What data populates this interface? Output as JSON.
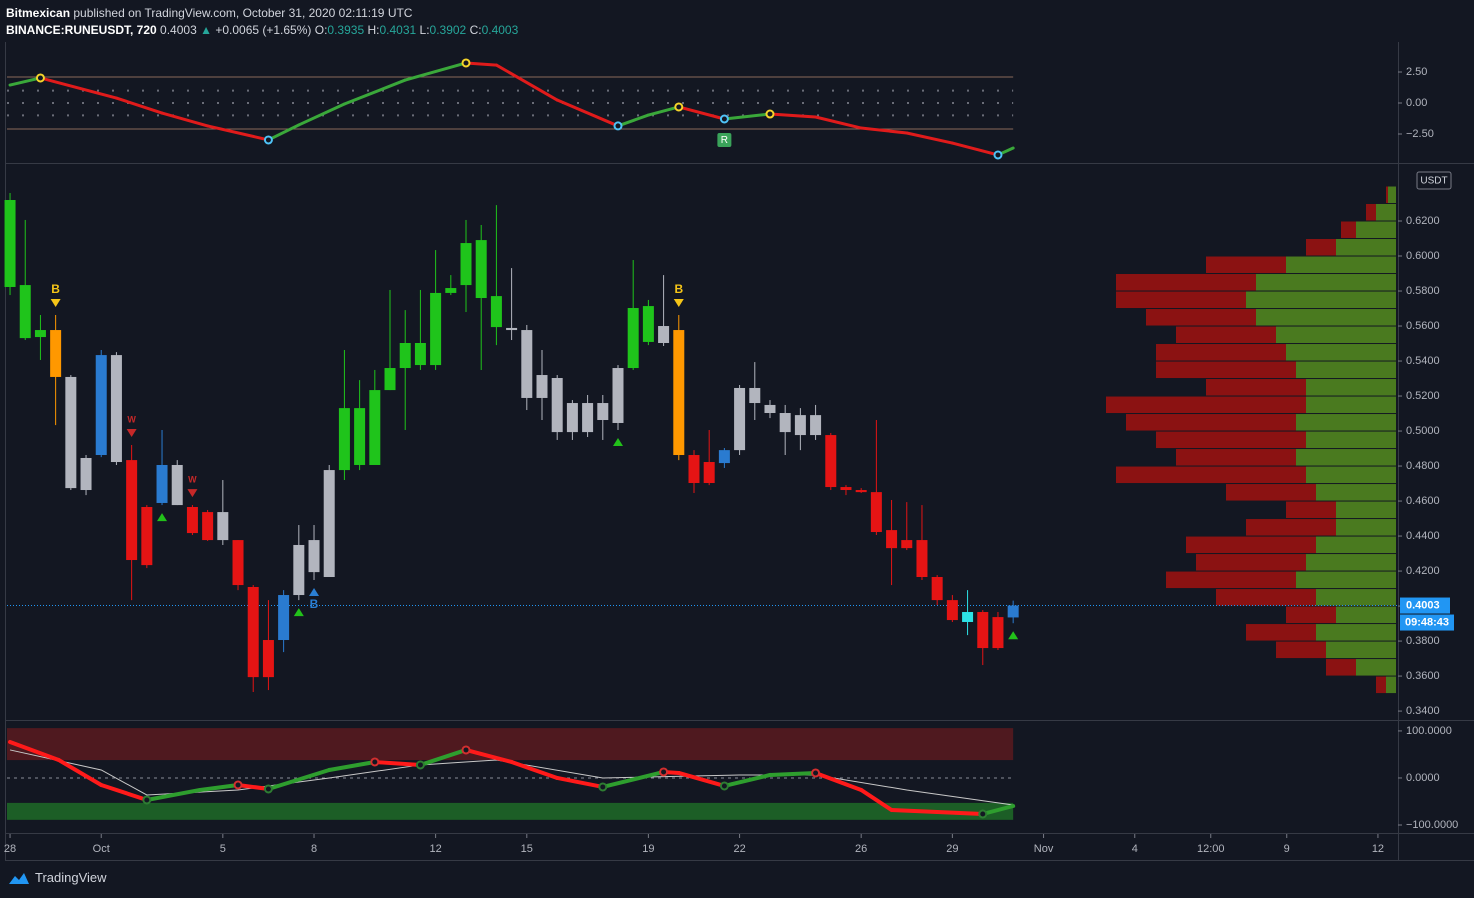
{
  "header": {
    "author": "Bitmexican",
    "published": "published on TradingView.com, October 31, 2020 02:11:19 UTC",
    "symbol": "BINANCE:RUNEUSDT, 720",
    "last": "0.4003",
    "arrow": "▲",
    "change": "+0.0065 (+1.65%)",
    "ohlc": [
      {
        "label": "O:",
        "value": "0.3935"
      },
      {
        "label": "H:",
        "value": "0.4031"
      },
      {
        "label": "L:",
        "value": "0.3902"
      },
      {
        "label": "C:",
        "value": "0.4003"
      }
    ]
  },
  "footer": {
    "brand": "TradingView"
  },
  "chart_data": [
    {
      "type": "line",
      "xlim": [
        -0.1,
        45.66
      ],
      "ylim": [
        -4.84,
        4.76
      ],
      "yticks": [
        {
          "value": 2.5,
          "label": "2.50"
        },
        {
          "value": 0,
          "label": "0.00"
        },
        {
          "value": -2.5,
          "label": "−2.50"
        }
      ],
      "x": [
        0,
        1,
        3.5,
        5,
        6.5,
        8.5,
        9.5,
        11,
        13,
        15,
        16,
        18,
        20,
        21,
        22,
        23.5,
        25,
        26.5,
        28,
        29.5,
        31,
        32.5,
        33
      ],
      "values": [
        1.45,
        2.02,
        0.4,
        -0.81,
        -1.85,
        -2.98,
        -1.77,
        -0.08,
        1.85,
        3.23,
        3.06,
        0.24,
        -1.85,
        -0.97,
        -0.32,
        -1.29,
        -0.89,
        -1.13,
        -2.02,
        -2.42,
        -3.23,
        -4.19,
        -3.63
      ],
      "rising_color": "#3aa83a",
      "falling_color": "#e01b1b",
      "peak_color": "#f5d42a",
      "trough_color": "#4fc3f7",
      "levels": [
        2.1,
        -2.1
      ],
      "level_color": "#8a6a5a",
      "dotted_levels": [
        1,
        0,
        -1
      ],
      "annotations": [
        {
          "x": 23.5,
          "text": "R"
        }
      ]
    },
    {
      "type": "candlestick",
      "xlim": [
        -0.1,
        45.66
      ],
      "ylim": [
        0.3349,
        0.652
      ],
      "xticks": [
        {
          "value": 0,
          "label": "28"
        },
        {
          "value": 3,
          "label": "Oct"
        },
        {
          "value": 7,
          "label": "5"
        },
        {
          "value": 10,
          "label": "8"
        },
        {
          "value": 14,
          "label": "12"
        },
        {
          "value": 17,
          "label": "15"
        },
        {
          "value": 21,
          "label": "19"
        },
        {
          "value": 24,
          "label": "22"
        },
        {
          "value": 28,
          "label": "26"
        },
        {
          "value": 31,
          "label": "29"
        },
        {
          "value": 34,
          "label": "Nov"
        },
        {
          "value": 37,
          "label": "4"
        },
        {
          "value": 39.5,
          "label": "12:00"
        },
        {
          "value": 42,
          "label": "9"
        },
        {
          "value": 45,
          "label": "12"
        }
      ],
      "yticks": [
        {
          "value": 0.34,
          "label": "0.3400"
        },
        {
          "value": 0.36,
          "label": "0.3600"
        },
        {
          "value": 0.38,
          "label": "0.3800"
        },
        {
          "value": 0.4,
          "label": "0.4000"
        },
        {
          "value": 0.42,
          "label": "0.4200"
        },
        {
          "value": 0.44,
          "label": "0.4400"
        },
        {
          "value": 0.46,
          "label": "0.4600"
        },
        {
          "value": 0.48,
          "label": "0.4800"
        },
        {
          "value": 0.5,
          "label": "0.5000"
        },
        {
          "value": 0.52,
          "label": "0.5200"
        },
        {
          "value": 0.54,
          "label": "0.5400"
        },
        {
          "value": 0.56,
          "label": "0.5600"
        },
        {
          "value": 0.58,
          "label": "0.5800"
        },
        {
          "value": 0.6,
          "label": "0.6000"
        },
        {
          "value": 0.62,
          "label": "0.6200"
        }
      ],
      "currency": "USDT",
      "x": [
        0,
        0.5,
        1,
        1.5,
        2,
        2.5,
        3,
        3.5,
        4,
        4.5,
        5,
        5.5,
        6,
        6.5,
        7,
        7.5,
        8,
        8.5,
        9,
        9.5,
        10,
        10.5,
        11,
        11.5,
        12,
        12.5,
        13,
        13.5,
        14,
        14.5,
        15,
        15.5,
        16,
        16.5,
        17,
        17.5,
        18,
        18.5,
        19,
        19.5,
        20,
        20.5,
        21,
        21.5,
        22,
        22.5,
        23,
        23.5,
        24,
        24.5,
        25,
        25.5,
        26,
        26.5,
        27,
        27.5,
        28,
        28.5,
        29,
        29.5,
        30,
        30.5,
        31,
        31.5,
        32,
        32.5,
        33
      ],
      "open": [
        0.5823,
        0.5531,
        0.5537,
        0.5577,
        0.5309,
        0.4663,
        0.4863,
        0.5434,
        0.4834,
        0.4566,
        0.4589,
        0.4806,
        0.4566,
        0.4537,
        0.4377,
        0.4377,
        0.4109,
        0.3806,
        0.3806,
        0.4063,
        0.4194,
        0.4166,
        0.4777,
        0.4806,
        0.4806,
        0.5234,
        0.536,
        0.5377,
        0.5377,
        0.5789,
        0.5834,
        0.576,
        0.5594,
        0.5589,
        0.5577,
        0.5189,
        0.5303,
        0.516,
        0.516,
        0.5063,
        0.5046,
        0.536,
        0.5509,
        0.5503,
        0.5577,
        0.4863,
        0.4823,
        0.4817,
        0.4891,
        0.516,
        0.5103,
        0.5103,
        0.5091,
        0.5091,
        0.4977,
        0.468,
        0.4663,
        0.4651,
        0.4434,
        0.4377,
        0.4377,
        0.4166,
        0.4034,
        0.3966,
        0.3966,
        0.3937,
        0.3935
      ],
      "high": [
        0.636,
        0.6206,
        0.5663,
        0.5663,
        0.532,
        0.4863,
        0.5463,
        0.5451,
        0.492,
        0.4577,
        0.5006,
        0.4834,
        0.4577,
        0.4549,
        0.472,
        0.4377,
        0.412,
        0.4034,
        0.4091,
        0.4463,
        0.4463,
        0.4806,
        0.5463,
        0.5291,
        0.5349,
        0.5806,
        0.5691,
        0.5806,
        0.6034,
        0.5891,
        0.6206,
        0.6177,
        0.6291,
        0.5931,
        0.5606,
        0.5463,
        0.532,
        0.5177,
        0.5206,
        0.5206,
        0.5377,
        0.5977,
        0.5749,
        0.5891,
        0.5663,
        0.4891,
        0.5006,
        0.4903,
        0.5263,
        0.5394,
        0.5177,
        0.5149,
        0.5131,
        0.5149,
        0.4989,
        0.4691,
        0.4674,
        0.5063,
        0.4606,
        0.4594,
        0.4577,
        0.4177,
        0.4063,
        0.4091,
        0.3977,
        0.3966,
        0.4031
      ],
      "low": [
        0.5777,
        0.552,
        0.5406,
        0.5034,
        0.4663,
        0.4634,
        0.4851,
        0.4806,
        0.4034,
        0.4217,
        0.4577,
        0.4577,
        0.4406,
        0.4372,
        0.4349,
        0.4091,
        0.3509,
        0.352,
        0.3737,
        0.4034,
        0.4149,
        0.4166,
        0.472,
        0.4777,
        0.4823,
        0.5234,
        0.5006,
        0.5349,
        0.5349,
        0.5777,
        0.568,
        0.5349,
        0.5491,
        0.552,
        0.512,
        0.5063,
        0.4949,
        0.4949,
        0.4966,
        0.4949,
        0.5006,
        0.5349,
        0.5491,
        0.5486,
        0.4834,
        0.4646,
        0.4691,
        0.4789,
        0.4863,
        0.5063,
        0.5074,
        0.4863,
        0.4891,
        0.4949,
        0.4663,
        0.4634,
        0.4646,
        0.4406,
        0.412,
        0.432,
        0.4149,
        0.4006,
        0.3909,
        0.3834,
        0.3663,
        0.3749,
        0.3902
      ],
      "close": [
        0.632,
        0.5834,
        0.5577,
        0.5309,
        0.4674,
        0.4846,
        0.5434,
        0.4823,
        0.4263,
        0.4234,
        0.4806,
        0.4577,
        0.4417,
        0.4377,
        0.4537,
        0.412,
        0.3594,
        0.3594,
        0.4063,
        0.4349,
        0.4377,
        0.4777,
        0.5131,
        0.5131,
        0.5234,
        0.536,
        0.5503,
        0.5503,
        0.5789,
        0.5817,
        0.6074,
        0.6091,
        0.5771,
        0.5577,
        0.5189,
        0.532,
        0.4994,
        0.4994,
        0.4994,
        0.516,
        0.536,
        0.5703,
        0.5714,
        0.56,
        0.4863,
        0.4703,
        0.4703,
        0.4891,
        0.5246,
        0.5246,
        0.5149,
        0.4994,
        0.4977,
        0.4977,
        0.468,
        0.4663,
        0.4651,
        0.4423,
        0.4331,
        0.4331,
        0.4166,
        0.4034,
        0.392,
        0.3909,
        0.376,
        0.376,
        0.4003
      ],
      "colors": [
        "#1fc41b",
        "#1fc41b",
        "#1fc41b",
        "#ff9800",
        "#b2b5be",
        "#b2b5be",
        "#2a7bd0",
        "#b2b5be",
        "#e51414",
        "#e51414",
        "#2a7bd0",
        "#b2b5be",
        "#e51414",
        "#e51414",
        "#b2b5be",
        "#e51414",
        "#e51414",
        "#e51414",
        "#2a7bd0",
        "#b2b5be",
        "#b2b5be",
        "#b2b5be",
        "#1fc41b",
        "#1fc41b",
        "#1fc41b",
        "#1fc41b",
        "#1fc41b",
        "#1fc41b",
        "#1fc41b",
        "#1fc41b",
        "#1fc41b",
        "#1fc41b",
        "#1fc41b",
        "#b2b5be",
        "#b2b5be",
        "#b2b5be",
        "#b2b5be",
        "#b2b5be",
        "#b2b5be",
        "#b2b5be",
        "#b2b5be",
        "#1fc41b",
        "#1fc41b",
        "#b2b5be",
        "#ff9800",
        "#e51414",
        "#e51414",
        "#2a7bd0",
        "#b2b5be",
        "#b2b5be",
        "#b2b5be",
        "#b2b5be",
        "#b2b5be",
        "#b2b5be",
        "#e51414",
        "#e51414",
        "#e51414",
        "#e51414",
        "#e51414",
        "#e51414",
        "#e51414",
        "#e51414",
        "#e51414",
        "#2de2e6",
        "#e51414",
        "#e51414",
        "#2a7bd0"
      ],
      "signals": [
        {
          "x": 1.5,
          "text": "B",
          "position": "above",
          "color": "#f5c518"
        },
        {
          "x": 4,
          "text": "W",
          "position": "above",
          "color": "#c62828"
        },
        {
          "x": 6,
          "text": "W",
          "position": "above",
          "color": "#c62828"
        },
        {
          "x": 5,
          "position": "below",
          "color": "#22c11a"
        },
        {
          "x": 9.5,
          "position": "below",
          "color": "#22c11a"
        },
        {
          "x": 10,
          "text": "B",
          "position": "below",
          "color": "#2a7fd4"
        },
        {
          "x": 20,
          "position": "below",
          "color": "#22c11a"
        },
        {
          "x": 22,
          "text": "B",
          "position": "above",
          "color": "#f5c518"
        },
        {
          "x": 33,
          "position": "below",
          "color": "#22c11a"
        }
      ],
      "last_price": {
        "value": 0.4003,
        "label": "0.4003",
        "countdown": "09:48:43",
        "color": "#2196f3"
      },
      "volume_profile": {
        "prices": [
          0.355,
          0.365,
          0.375,
          0.385,
          0.395,
          0.405,
          0.415,
          0.425,
          0.435,
          0.445,
          0.455,
          0.465,
          0.475,
          0.485,
          0.495,
          0.505,
          0.515,
          0.525,
          0.535,
          0.545,
          0.555,
          0.565,
          0.575,
          0.585,
          0.595,
          0.605,
          0.615,
          0.625,
          0.635
        ],
        "buy": [
          10,
          40,
          70,
          80,
          60,
          80,
          100,
          90,
          80,
          60,
          60,
          80,
          90,
          100,
          90,
          100,
          90,
          90,
          100,
          110,
          120,
          140,
          150,
          140,
          110,
          60,
          40,
          20,
          8
        ],
        "sell": [
          10,
          30,
          50,
          70,
          50,
          100,
          130,
          110,
          130,
          90,
          50,
          90,
          190,
          120,
          150,
          170,
          200,
          100,
          140,
          130,
          100,
          110,
          130,
          140,
          80,
          30,
          15,
          10,
          2
        ],
        "buy_color": "#4a7a1f",
        "sell_color": "#8b1212"
      }
    },
    {
      "type": "line",
      "xlim": [
        -0.1,
        45.66
      ],
      "ylim": [
        -117,
        119
      ],
      "yticks": [
        {
          "value": 100,
          "label": "100.0000"
        },
        {
          "value": 0,
          "label": "0.0000"
        },
        {
          "value": -100,
          "label": "−100.0000"
        }
      ],
      "x": [
        0,
        1.6,
        3,
        4.5,
        6.25,
        7.5,
        8.5,
        10.5,
        12,
        13.5,
        15,
        16.5,
        18,
        19.5,
        21.5,
        22,
        23.5,
        25,
        26.5,
        28,
        29,
        30.5,
        32,
        33
      ],
      "values": [
        76.6,
        38.3,
        -14.9,
        -46.8,
        -25.5,
        -14.9,
        -23.4,
        17.0,
        34.0,
        27.7,
        59.6,
        34.0,
        0,
        -19.1,
        12.8,
        10.6,
        -17.0,
        6.4,
        10.6,
        -25.5,
        -68.1,
        -72.3,
        -76.6,
        -59.6
      ],
      "rising_color": "#2e9e2e",
      "falling_color": "#ff1a1a",
      "peak_color": "#d32f2f",
      "trough_color": "#2e7d32",
      "signal": {
        "x": [
          0,
          3,
          4.5,
          7.5,
          10.5,
          13.5,
          16,
          19.5,
          24,
          26.5,
          29.5,
          33
        ],
        "values": [
          59.6,
          17.0,
          -36.2,
          -25.5,
          0,
          27.7,
          38.3,
          0,
          6.4,
          6.4,
          -25.5,
          -57.4
        ],
        "color": "#c8c8c8"
      },
      "zones": [
        {
          "from": 38,
          "to": 106,
          "color": "#5a1a1e"
        },
        {
          "from": -53,
          "to": -89,
          "color": "#1f6b27"
        }
      ],
      "dashed_levels": [
        0
      ]
    }
  ]
}
